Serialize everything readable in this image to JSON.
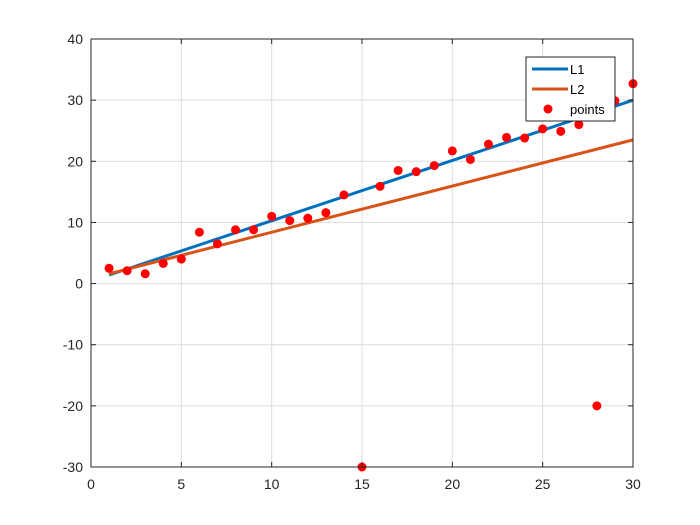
{
  "chart_data": {
    "type": "line",
    "title": "",
    "xlabel": "",
    "ylabel": "",
    "xlim": [
      0,
      30
    ],
    "ylim": [
      -30,
      40
    ],
    "xticks": [
      0,
      5,
      10,
      15,
      20,
      25,
      30
    ],
    "yticks": [
      -30,
      -20,
      -10,
      0,
      10,
      20,
      30,
      40
    ],
    "grid": true,
    "legend_position": "top-right",
    "series": [
      {
        "name": "L1",
        "kind": "line",
        "color": "#0072BD",
        "x": [
          1,
          30
        ],
        "y": [
          1.4,
          30.0
        ]
      },
      {
        "name": "L2",
        "kind": "line",
        "color": "#D95319",
        "x": [
          1,
          30
        ],
        "y": [
          1.6,
          23.5
        ]
      },
      {
        "name": "points",
        "kind": "scatter",
        "color": "#FF0000",
        "x": [
          1,
          2,
          3,
          4,
          5,
          6,
          7,
          8,
          9,
          10,
          11,
          12,
          13,
          14,
          15,
          16,
          17,
          18,
          19,
          20,
          21,
          22,
          23,
          24,
          25,
          26,
          27,
          28,
          29,
          30
        ],
        "y": [
          2.5,
          2.1,
          1.6,
          3.3,
          4.0,
          8.4,
          6.5,
          8.8,
          8.8,
          11.0,
          10.3,
          10.7,
          11.6,
          14.5,
          -30.0,
          15.9,
          18.5,
          18.3,
          19.3,
          21.7,
          20.3,
          22.8,
          23.9,
          23.8,
          25.3,
          24.9,
          26.0,
          -20.0,
          29.9,
          32.7
        ]
      }
    ]
  }
}
